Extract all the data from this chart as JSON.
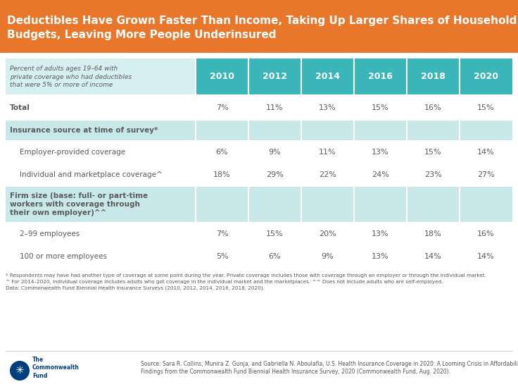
{
  "title_line1": "Deductibles Have Grown Faster Than Income, Taking Up Larger Shares of Household",
  "title_line2": "Budgets, Leaving More People Underinsured",
  "title_bg": "#E8762B",
  "title_color": "#FFFFFF",
  "header_bg": "#3AB5B8",
  "header_color": "#FFFFFF",
  "years": [
    "2010",
    "2012",
    "2014",
    "2016",
    "2018",
    "2020"
  ],
  "col_header": "Percent of adults ages 19–64 with\nprivate coverage who had deductibles\nthat were 5% or more of income",
  "rows": [
    {
      "label": "Total",
      "bold": true,
      "indent": false,
      "values": [
        "7%",
        "11%",
        "13%",
        "15%",
        "16%",
        "15%"
      ],
      "row_bg": "#FFFFFF",
      "is_section": false
    },
    {
      "label": "Insurance source at time of survey*",
      "bold": true,
      "indent": false,
      "values": [
        "",
        "",
        "",
        "",
        "",
        ""
      ],
      "row_bg": "#C8E8EA",
      "is_section": true
    },
    {
      "label": "Employer-provided coverage",
      "bold": false,
      "indent": true,
      "values": [
        "6%",
        "9%",
        "11%",
        "13%",
        "15%",
        "14%"
      ],
      "row_bg": "#FFFFFF",
      "is_section": false
    },
    {
      "label": "Individual and marketplace coverage^",
      "bold": false,
      "indent": true,
      "values": [
        "18%",
        "29%",
        "22%",
        "24%",
        "23%",
        "27%"
      ],
      "row_bg": "#FFFFFF",
      "is_section": false
    },
    {
      "label": "Firm size (base: full- or part-time\nworkers with coverage through\ntheir own employer)^^",
      "bold": true,
      "indent": false,
      "values": [
        "",
        "",
        "",
        "",
        "",
        ""
      ],
      "row_bg": "#C8E8EA",
      "is_section": true
    },
    {
      "label": "2–99 employees",
      "bold": false,
      "indent": true,
      "values": [
        "7%",
        "15%",
        "20%",
        "13%",
        "18%",
        "16%"
      ],
      "row_bg": "#FFFFFF",
      "is_section": false
    },
    {
      "label": "100 or more employees",
      "bold": false,
      "indent": true,
      "values": [
        "5%",
        "6%",
        "9%",
        "13%",
        "14%",
        "14%"
      ],
      "row_bg": "#FFFFFF",
      "is_section": false
    }
  ],
  "footnote1": "* Respondents may have had another type of coverage at some point during the year. Private coverage includes those with coverage through an employer or through the individual market.",
  "footnote2": "^ For 2014–2020, individual coverage includes adults who got coverage in the individual market and the marketplaces. ^^ Does not include adults who are self-employed.",
  "footnote3": "Data: Commonwealth Fund Biennial Health Insurance Surveys (2010, 2012, 2014, 2016, 2018, 2020).",
  "source_italic": "U.S. Health Insurance Coverage in 2020: A Looming Crisis in Affordability —",
  "source": "Source: Sara R. Collins, Munira Z. Gunja, and Gabriella N. Aboulafia, U.S. Health Insurance Coverage in 2020: A Looming Crisis in Affordability —\nFindings from the Commonwealth Fund Biennial Health Insurance Survey, 2020 (Commonwealth Fund, Aug. 2020).",
  "section_bg": "#C8E8EA",
  "text_color": "#5B5B5B",
  "header_left_bg": "#D6F0F2"
}
